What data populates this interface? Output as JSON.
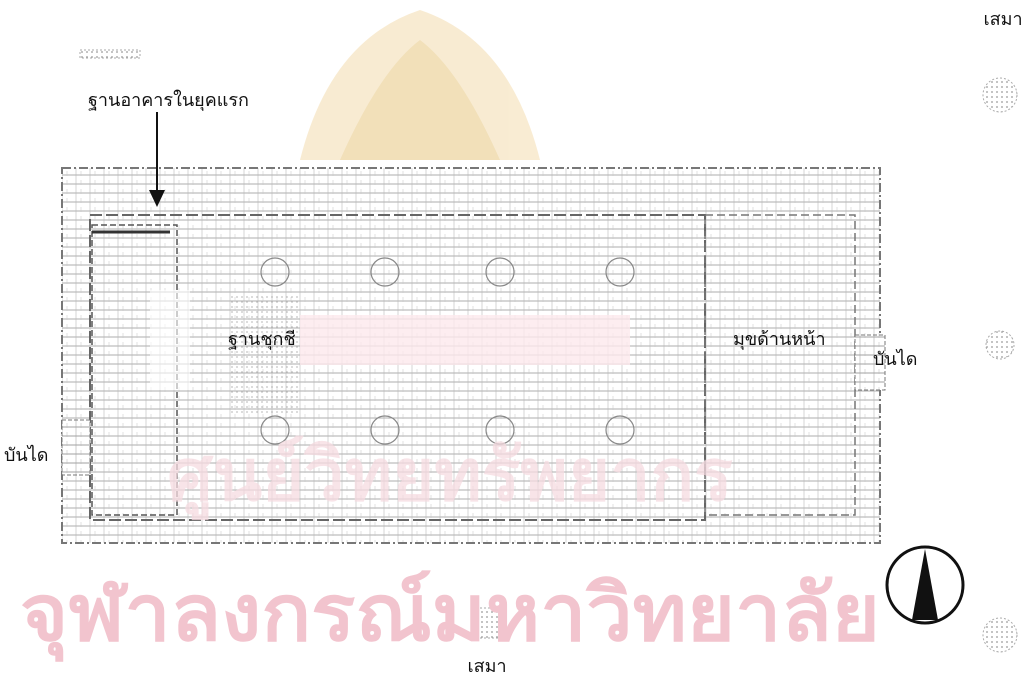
{
  "labels": {
    "sema_top": "เสมา",
    "early_base": "ฐานอาคารในยุคแรก",
    "altar_base": "ฐานชุกชี",
    "front_porch": "มุขด้านหน้า",
    "stairs_right": "บันได",
    "stairs_left": "บันได",
    "sema_bottom": "เสมา"
  },
  "watermark": {
    "upper": "ศูนย์วิทยทรัพยากร",
    "lower": "จุฬาลงกรณ์มหาวิทยาลัย"
  }
}
